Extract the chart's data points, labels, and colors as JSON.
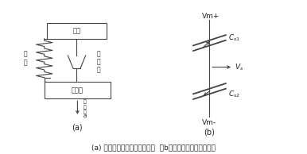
{
  "bg_color": "#ffffff",
  "line_color": "#444444",
  "text_color": "#222222",
  "caption": "(a) 执行器的力学结构示意图，  （b）感应器的电学原理图。",
  "caption_fontsize": 6.5,
  "fig_width": 3.86,
  "fig_height": 1.94,
  "label_a": "(a)",
  "label_b": "(b)",
  "dpi": 100
}
